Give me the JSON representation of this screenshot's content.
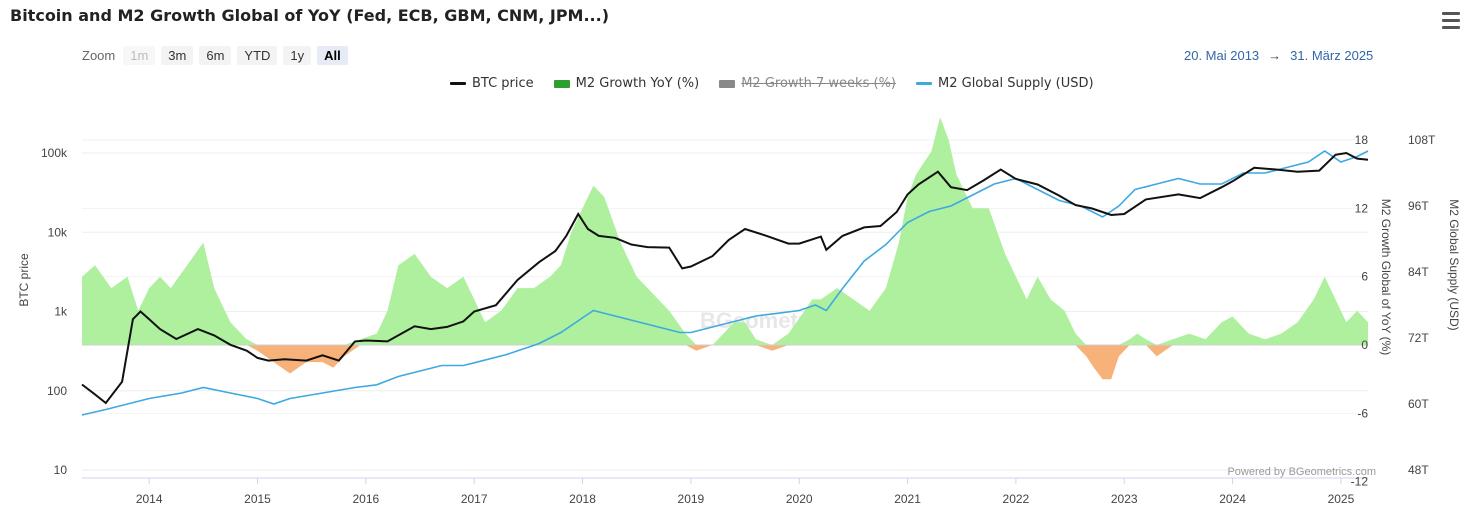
{
  "title": "Bitcoin and M2 Growth Global of YoY (Fed, ECB, GBM, CNM, JPM...)",
  "menu_icon": "hamburger-menu-icon",
  "zoom": {
    "label": "Zoom",
    "buttons": [
      {
        "label": "1m",
        "state": "disabled"
      },
      {
        "label": "3m",
        "state": "normal"
      },
      {
        "label": "6m",
        "state": "normal"
      },
      {
        "label": "YTD",
        "state": "normal"
      },
      {
        "label": "1y",
        "state": "normal"
      },
      {
        "label": "All",
        "state": "active"
      }
    ]
  },
  "date_range": {
    "from": "20. Mai 2013",
    "arrow": "→",
    "to": "31. März 2025"
  },
  "credit": "Powered by BGeometrics.com",
  "watermark": "BGeometrics",
  "chart_data": {
    "type": "line",
    "legend": [
      {
        "name": "BTC price",
        "color": "#111111",
        "visible": true
      },
      {
        "name": "M2 Growth YoY (%)",
        "color": "#2e9e2e",
        "visible": true
      },
      {
        "name": "M2 Growth 7 weeks (%)",
        "color": "#888888",
        "visible": false
      },
      {
        "name": "M2 Global Supply (USD)",
        "color": "#3ea9e0",
        "visible": true
      }
    ],
    "x_ticks": [
      "2014",
      "2015",
      "2016",
      "2017",
      "2018",
      "2019",
      "2020",
      "2021",
      "2022",
      "2023",
      "2024",
      "2025"
    ],
    "x_range": [
      2013.38,
      2025.25
    ],
    "axes": {
      "btc": {
        "label": "BTC price",
        "scale": "log",
        "range": [
          10,
          150000
        ],
        "ticks": [
          "10",
          "100",
          "1k",
          "10k",
          "100k"
        ]
      },
      "m2_growth": {
        "label": "M2 Growth Global of YoY (%)",
        "range": [
          -12,
          18
        ],
        "ticks": [
          "-12",
          "-6",
          "0",
          "6",
          "12",
          "18"
        ]
      },
      "m2_supply": {
        "label": "M2 Global Supply (USD)",
        "range": [
          48,
          108
        ],
        "ticks": [
          "48T",
          "60T",
          "72T",
          "84T",
          "96T",
          "108T"
        ]
      }
    },
    "series": [
      {
        "name": "BTC price",
        "axis": "btc",
        "x": [
          2013.38,
          2013.5,
          2013.6,
          2013.75,
          2013.85,
          2013.92,
          2014.0,
          2014.1,
          2014.25,
          2014.45,
          2014.6,
          2014.75,
          2014.9,
          2015.0,
          2015.1,
          2015.25,
          2015.45,
          2015.6,
          2015.75,
          2015.9,
          2016.0,
          2016.2,
          2016.45,
          2016.6,
          2016.75,
          2016.9,
          2017.0,
          2017.2,
          2017.4,
          2017.6,
          2017.75,
          2017.85,
          2017.96,
          2018.05,
          2018.15,
          2018.3,
          2018.45,
          2018.6,
          2018.8,
          2018.92,
          2019.0,
          2019.2,
          2019.35,
          2019.5,
          2019.7,
          2019.9,
          2020.0,
          2020.2,
          2020.25,
          2020.4,
          2020.6,
          2020.75,
          2020.9,
          2021.0,
          2021.1,
          2021.28,
          2021.4,
          2021.55,
          2021.7,
          2021.86,
          2022.0,
          2022.2,
          2022.4,
          2022.55,
          2022.7,
          2022.88,
          2023.0,
          2023.2,
          2023.5,
          2023.7,
          2023.9,
          2024.0,
          2024.2,
          2024.4,
          2024.6,
          2024.8,
          2024.95,
          2025.05,
          2025.15,
          2025.25
        ],
        "y": [
          120,
          90,
          70,
          130,
          800,
          1000,
          800,
          600,
          450,
          600,
          500,
          380,
          320,
          260,
          240,
          250,
          240,
          280,
          240,
          420,
          430,
          420,
          650,
          600,
          640,
          750,
          1000,
          1200,
          2500,
          4200,
          5800,
          9000,
          17000,
          11000,
          9000,
          8500,
          7000,
          6500,
          6400,
          3500,
          3700,
          5000,
          8000,
          11000,
          9000,
          7200,
          7200,
          8800,
          6000,
          9000,
          11500,
          12000,
          18000,
          30000,
          40000,
          58000,
          37000,
          34000,
          45000,
          62000,
          47000,
          40000,
          29000,
          22000,
          20000,
          16500,
          17000,
          26000,
          30000,
          27000,
          37000,
          44000,
          65000,
          62000,
          58000,
          60000,
          95000,
          100000,
          85000,
          82000
        ]
      },
      {
        "name": "M2 Growth YoY (%)",
        "axis": "m2_growth",
        "x": [
          2013.38,
          2013.5,
          2013.65,
          2013.8,
          2013.9,
          2014.0,
          2014.1,
          2014.2,
          2014.35,
          2014.5,
          2014.6,
          2014.75,
          2014.9,
          2015.0,
          2015.15,
          2015.3,
          2015.45,
          2015.6,
          2015.7,
          2015.8,
          2015.95,
          2016.1,
          2016.2,
          2016.3,
          2016.45,
          2016.6,
          2016.75,
          2016.9,
          2017.0,
          2017.1,
          2017.25,
          2017.4,
          2017.55,
          2017.7,
          2017.8,
          2017.9,
          2018.0,
          2018.1,
          2018.2,
          2018.35,
          2018.5,
          2018.6,
          2018.8,
          2018.95,
          2019.05,
          2019.2,
          2019.3,
          2019.4,
          2019.5,
          2019.6,
          2019.75,
          2019.9,
          2020.05,
          2020.12,
          2020.2,
          2020.35,
          2020.5,
          2020.65,
          2020.8,
          2020.92,
          2021.0,
          2021.08,
          2021.15,
          2021.22,
          2021.3,
          2021.38,
          2021.45,
          2021.6,
          2021.75,
          2021.9,
          2022.0,
          2022.1,
          2022.2,
          2022.32,
          2022.45,
          2022.55,
          2022.65,
          2022.72,
          2022.8,
          2022.88,
          2022.95,
          2023.05,
          2023.12,
          2023.2,
          2023.3,
          2023.45,
          2023.6,
          2023.75,
          2023.9,
          2024.0,
          2024.15,
          2024.3,
          2024.45,
          2024.6,
          2024.75,
          2024.85,
          2024.95,
          2025.05,
          2025.15,
          2025.25
        ],
        "y": [
          6,
          7,
          5,
          6,
          3,
          5,
          6,
          5,
          7,
          9,
          5,
          2,
          0.5,
          -0.5,
          -1.5,
          -2.5,
          -1.5,
          -1.5,
          -2,
          -1,
          0.5,
          1,
          3,
          7,
          8,
          6,
          5,
          6,
          4,
          2,
          3,
          5,
          5,
          6,
          7,
          10,
          12,
          14,
          13,
          9,
          6,
          5,
          3,
          1,
          -0.5,
          0,
          1,
          2,
          2,
          0.5,
          -0.5,
          1,
          3,
          4,
          4,
          5,
          4,
          3,
          5,
          9,
          13,
          15,
          16,
          17,
          20,
          18,
          15,
          12,
          12,
          8,
          6,
          4,
          6,
          4,
          3,
          1,
          -1,
          -2,
          -3,
          -3,
          -1,
          0.5,
          1,
          0.5,
          -1,
          0.5,
          1,
          0.5,
          2,
          2.5,
          1,
          0.5,
          1,
          2,
          4,
          6,
          4,
          2,
          3,
          2
        ]
      },
      {
        "name": "M2 Global Supply (USD)",
        "axis": "m2_supply",
        "x": [
          2013.38,
          2013.6,
          2013.8,
          2014.0,
          2014.3,
          2014.5,
          2014.75,
          2015.0,
          2015.15,
          2015.3,
          2015.6,
          2015.9,
          2016.1,
          2016.3,
          2016.5,
          2016.7,
          2016.9,
          2017.0,
          2017.3,
          2017.6,
          2017.8,
          2017.95,
          2018.1,
          2018.3,
          2018.5,
          2018.7,
          2018.9,
          2019.0,
          2019.2,
          2019.4,
          2019.6,
          2019.8,
          2020.0,
          2020.15,
          2020.25,
          2020.4,
          2020.6,
          2020.8,
          2021.0,
          2021.2,
          2021.4,
          2021.6,
          2021.8,
          2022.0,
          2022.2,
          2022.4,
          2022.6,
          2022.8,
          2022.95,
          2023.1,
          2023.3,
          2023.5,
          2023.7,
          2023.9,
          2024.1,
          2024.3,
          2024.5,
          2024.7,
          2024.85,
          2025.0,
          2025.15,
          2025.25
        ],
        "y": [
          58,
          59,
          60,
          61,
          62,
          63,
          62,
          61,
          60,
          61,
          62,
          63,
          63.5,
          65,
          66,
          67,
          67,
          67.5,
          69,
          71,
          73,
          75,
          77,
          76,
          75,
          74,
          73,
          73,
          74,
          75,
          76,
          76.5,
          77,
          78,
          77,
          81,
          86,
          89,
          93,
          95,
          96,
          98,
          100,
          101,
          99,
          97,
          96,
          94,
          96,
          99,
          100,
          101,
          100,
          100,
          102,
          102,
          103,
          104,
          106,
          104,
          105,
          106
        ]
      }
    ]
  }
}
